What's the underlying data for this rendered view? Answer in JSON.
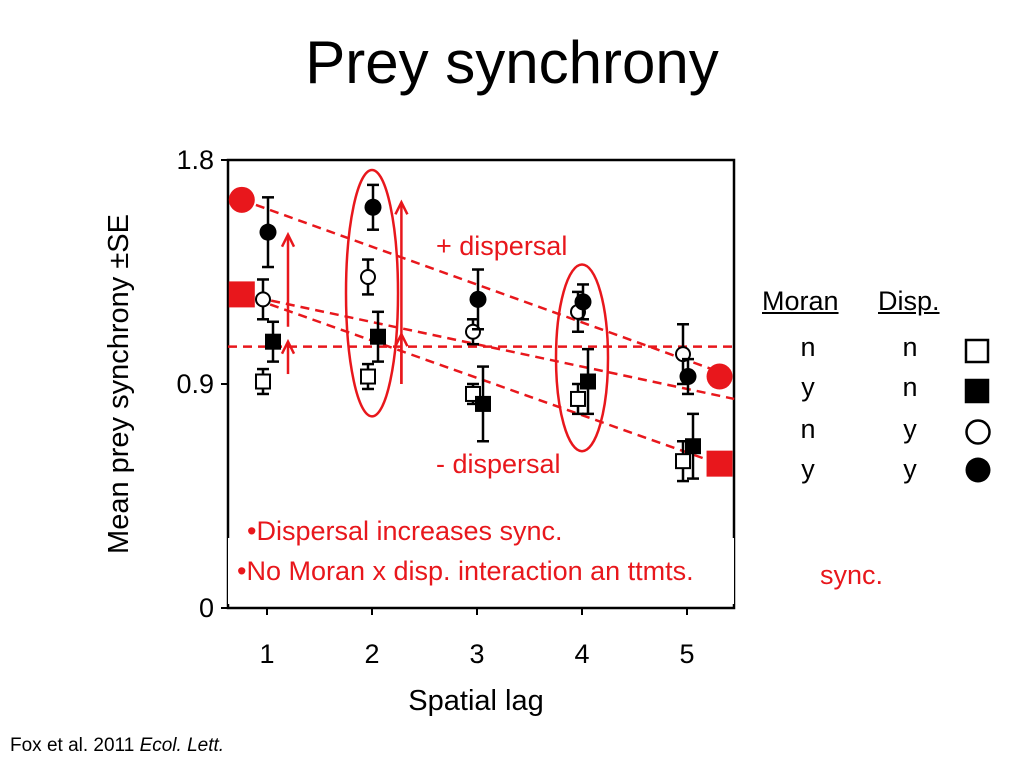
{
  "slide": {
    "title": "Prey synchrony",
    "citation_authors": "Fox et al. 2011",
    "citation_journal": "Ecol. Lett."
  },
  "colors": {
    "accent": "#e8171c",
    "ink": "#000000"
  },
  "chart_data": {
    "type": "scatter",
    "title": "",
    "xlabel": "Spatial lag",
    "ylabel": "Mean prey synchrony ±SE",
    "x": [
      1,
      2,
      3,
      4,
      5
    ],
    "xlim": [
      0.62,
      5.45
    ],
    "ylim": [
      0,
      1.8
    ],
    "x_ticks": [
      "1",
      "2",
      "3",
      "4",
      "5"
    ],
    "y_ticks": [
      "0",
      "0.9",
      "1.8"
    ],
    "series": [
      {
        "marker": "open-square",
        "values": [
          0.91,
          0.93,
          0.86,
          0.84,
          0.59
        ],
        "err": [
          0.05,
          0.05,
          0.04,
          0.06,
          0.08
        ]
      },
      {
        "marker": "filled-square",
        "values": [
          1.07,
          1.09,
          0.82,
          0.91,
          0.65
        ],
        "err": [
          0.08,
          0.1,
          0.15,
          0.13,
          0.13
        ]
      },
      {
        "marker": "open-circle",
        "values": [
          1.24,
          1.33,
          1.11,
          1.19,
          1.02
        ],
        "err": [
          0.08,
          0.07,
          0.05,
          0.08,
          0.12
        ]
      },
      {
        "marker": "filled-circle",
        "values": [
          1.51,
          1.61,
          1.24,
          1.23,
          0.93
        ],
        "err": [
          0.14,
          0.09,
          0.12,
          0.07,
          0.07
        ]
      }
    ],
    "reference_line": 1.05,
    "trend_lines": [
      {
        "from": [
          0.76,
          1.64
        ],
        "to": [
          5.3,
          0.95
        ]
      },
      {
        "from": [
          0.76,
          1.26
        ],
        "to": [
          5.45,
          0.84
        ]
      },
      {
        "from": [
          0.76,
          1.26
        ],
        "to": [
          5.3,
          0.58
        ]
      }
    ],
    "highlight_points": [
      {
        "shape": "circle",
        "x": 0.76,
        "y": 1.64
      },
      {
        "shape": "square",
        "x": 0.76,
        "y": 1.26
      },
      {
        "shape": "circle",
        "x": 5.31,
        "y": 0.93
      },
      {
        "shape": "square",
        "x": 5.31,
        "y": 0.58
      }
    ],
    "ellipses": [
      {
        "x": 2,
        "y_range": [
          0.77,
          1.76
        ]
      },
      {
        "x": 4,
        "y_range": [
          0.63,
          1.38
        ]
      }
    ],
    "arrows": [
      {
        "x": 1.2,
        "from": 1.13,
        "to": 1.5
      },
      {
        "x": 1.2,
        "from": 0.94,
        "to": 1.07
      },
      {
        "x": 2.28,
        "from": 0.9,
        "to": 1.63
      },
      {
        "x": 2.28,
        "from": 0.9,
        "to": 1.1
      }
    ],
    "annotations": {
      "plus_dispersal": "+ dispersal",
      "minus_dispersal": "- dispersal",
      "bullet_1": "•Dispersal increases sync.",
      "bullet_2": "•No Moran x disp. interaction an ttmts.",
      "bullet_2_overflow": "sync."
    },
    "legend": {
      "headers": [
        "Moran",
        "Disp."
      ],
      "rows": [
        {
          "moran": "n",
          "disp": "n",
          "marker": "open-square"
        },
        {
          "moran": "y",
          "disp": "n",
          "marker": "filled-square"
        },
        {
          "moran": "n",
          "disp": "y",
          "marker": "open-circle"
        },
        {
          "moran": "y",
          "disp": "y",
          "marker": "filled-circle"
        }
      ]
    }
  }
}
